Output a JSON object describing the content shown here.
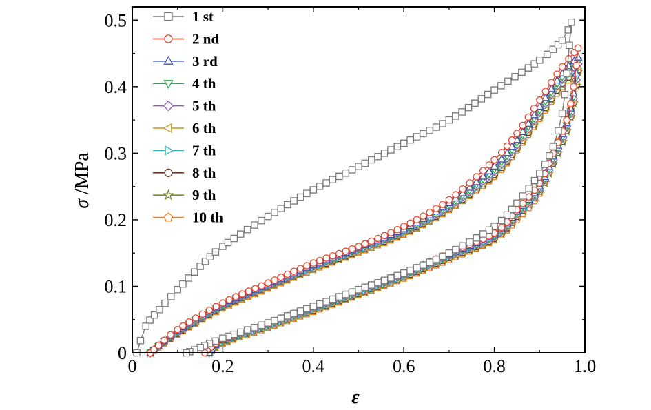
{
  "chart_data": {
    "type": "line",
    "title": "",
    "xlabel": "ε",
    "ylabel_symbol": "σ",
    "ylabel_unit": " /MPa",
    "xlim": [
      0,
      1.0
    ],
    "ylim": [
      0,
      0.52
    ],
    "xticks": [
      0,
      0.2,
      0.4,
      0.6,
      0.8,
      1.0
    ],
    "xtick_labels": [
      "0",
      "0.2",
      "0.4",
      "0.6",
      "0.8",
      "1.0"
    ],
    "yticks": [
      0,
      0.1,
      0.2,
      0.3,
      0.4,
      0.5
    ],
    "ytick_labels": [
      "0",
      "0.1",
      "0.2",
      "0.3",
      "0.4",
      "0.5"
    ],
    "grid": false,
    "legend_position": "top-left",
    "series": [
      {
        "name": "1 st",
        "marker": "square",
        "color": "#7a7a7a",
        "loading": [
          [
            0.01,
            0.0
          ],
          [
            0.03,
            0.04
          ],
          [
            0.06,
            0.065
          ],
          [
            0.1,
            0.095
          ],
          [
            0.15,
            0.13
          ],
          [
            0.2,
            0.16
          ],
          [
            0.3,
            0.205
          ],
          [
            0.4,
            0.245
          ],
          [
            0.5,
            0.28
          ],
          [
            0.6,
            0.315
          ],
          [
            0.7,
            0.35
          ],
          [
            0.8,
            0.395
          ],
          [
            0.9,
            0.44
          ],
          [
            0.95,
            0.47
          ],
          [
            0.97,
            0.497
          ]
        ],
        "unloading": [
          [
            0.97,
            0.497
          ],
          [
            0.96,
            0.42
          ],
          [
            0.95,
            0.36
          ],
          [
            0.93,
            0.31
          ],
          [
            0.9,
            0.27
          ],
          [
            0.85,
            0.225
          ],
          [
            0.8,
            0.19
          ],
          [
            0.7,
            0.15
          ],
          [
            0.6,
            0.12
          ],
          [
            0.5,
            0.095
          ],
          [
            0.4,
            0.07
          ],
          [
            0.3,
            0.045
          ],
          [
            0.2,
            0.022
          ],
          [
            0.15,
            0.008
          ],
          [
            0.12,
            0.0
          ]
        ]
      },
      {
        "name": "2 nd",
        "marker": "circle",
        "color": "#e8412a",
        "loading": [
          [
            0.04,
            0.0
          ],
          [
            0.1,
            0.035
          ],
          [
            0.2,
            0.075
          ],
          [
            0.3,
            0.105
          ],
          [
            0.4,
            0.135
          ],
          [
            0.5,
            0.16
          ],
          [
            0.6,
            0.19
          ],
          [
            0.7,
            0.23
          ],
          [
            0.8,
            0.29
          ],
          [
            0.85,
            0.33
          ],
          [
            0.9,
            0.38
          ],
          [
            0.95,
            0.43
          ],
          [
            0.985,
            0.458
          ]
        ],
        "unloading": [
          [
            0.985,
            0.458
          ],
          [
            0.975,
            0.4
          ],
          [
            0.96,
            0.35
          ],
          [
            0.93,
            0.3
          ],
          [
            0.9,
            0.255
          ],
          [
            0.85,
            0.215
          ],
          [
            0.8,
            0.18
          ],
          [
            0.7,
            0.15
          ],
          [
            0.6,
            0.12
          ],
          [
            0.5,
            0.095
          ],
          [
            0.4,
            0.07
          ],
          [
            0.3,
            0.045
          ],
          [
            0.2,
            0.02
          ],
          [
            0.16,
            0.0
          ]
        ]
      },
      {
        "name": "3 rd",
        "marker": "triangle-up",
        "color": "#3d4fa8",
        "loading": [
          [
            0.04,
            0.0
          ],
          [
            0.1,
            0.033
          ],
          [
            0.2,
            0.073
          ],
          [
            0.3,
            0.103
          ],
          [
            0.4,
            0.132
          ],
          [
            0.5,
            0.158
          ],
          [
            0.6,
            0.186
          ],
          [
            0.7,
            0.225
          ],
          [
            0.8,
            0.28
          ],
          [
            0.85,
            0.32
          ],
          [
            0.9,
            0.37
          ],
          [
            0.95,
            0.42
          ],
          [
            0.985,
            0.444
          ]
        ],
        "unloading": [
          [
            0.985,
            0.444
          ],
          [
            0.975,
            0.39
          ],
          [
            0.96,
            0.345
          ],
          [
            0.93,
            0.295
          ],
          [
            0.9,
            0.25
          ],
          [
            0.85,
            0.212
          ],
          [
            0.8,
            0.178
          ],
          [
            0.7,
            0.148
          ],
          [
            0.6,
            0.119
          ],
          [
            0.5,
            0.094
          ],
          [
            0.4,
            0.069
          ],
          [
            0.3,
            0.044
          ],
          [
            0.2,
            0.019
          ],
          [
            0.17,
            0.0
          ]
        ]
      },
      {
        "name": "4 th",
        "marker": "triangle-down",
        "color": "#2aa84a",
        "loading": [
          [
            0.04,
            0.0
          ],
          [
            0.1,
            0.032
          ],
          [
            0.2,
            0.072
          ],
          [
            0.3,
            0.102
          ],
          [
            0.4,
            0.131
          ],
          [
            0.5,
            0.157
          ],
          [
            0.6,
            0.184
          ],
          [
            0.7,
            0.222
          ],
          [
            0.8,
            0.276
          ],
          [
            0.85,
            0.316
          ],
          [
            0.9,
            0.365
          ],
          [
            0.95,
            0.415
          ],
          [
            0.985,
            0.438
          ]
        ],
        "unloading": [
          [
            0.985,
            0.438
          ],
          [
            0.975,
            0.385
          ],
          [
            0.96,
            0.342
          ],
          [
            0.93,
            0.292
          ],
          [
            0.9,
            0.248
          ],
          [
            0.85,
            0.21
          ],
          [
            0.8,
            0.176
          ],
          [
            0.7,
            0.147
          ],
          [
            0.6,
            0.118
          ],
          [
            0.5,
            0.093
          ],
          [
            0.4,
            0.068
          ],
          [
            0.3,
            0.043
          ],
          [
            0.2,
            0.018
          ],
          [
            0.17,
            0.0
          ]
        ]
      },
      {
        "name": "5 th",
        "marker": "diamond",
        "color": "#8e5bb5",
        "loading": [
          [
            0.04,
            0.0
          ],
          [
            0.1,
            0.031
          ],
          [
            0.2,
            0.071
          ],
          [
            0.3,
            0.101
          ],
          [
            0.4,
            0.13
          ],
          [
            0.5,
            0.156
          ],
          [
            0.6,
            0.183
          ],
          [
            0.7,
            0.22
          ],
          [
            0.8,
            0.273
          ],
          [
            0.85,
            0.313
          ],
          [
            0.9,
            0.362
          ],
          [
            0.95,
            0.412
          ],
          [
            0.985,
            0.434
          ]
        ],
        "unloading": [
          [
            0.985,
            0.434
          ],
          [
            0.975,
            0.382
          ],
          [
            0.96,
            0.34
          ],
          [
            0.93,
            0.29
          ],
          [
            0.9,
            0.246
          ],
          [
            0.85,
            0.208
          ],
          [
            0.8,
            0.175
          ],
          [
            0.7,
            0.146
          ],
          [
            0.6,
            0.117
          ],
          [
            0.5,
            0.092
          ],
          [
            0.4,
            0.067
          ],
          [
            0.3,
            0.042
          ],
          [
            0.2,
            0.018
          ],
          [
            0.17,
            0.0
          ]
        ]
      },
      {
        "name": "6 th",
        "marker": "triangle-left",
        "color": "#c8961e",
        "loading": [
          [
            0.04,
            0.0
          ],
          [
            0.1,
            0.03
          ],
          [
            0.2,
            0.07
          ],
          [
            0.3,
            0.1
          ],
          [
            0.4,
            0.129
          ],
          [
            0.5,
            0.155
          ],
          [
            0.6,
            0.182
          ],
          [
            0.7,
            0.219
          ],
          [
            0.8,
            0.271
          ],
          [
            0.85,
            0.311
          ],
          [
            0.9,
            0.36
          ],
          [
            0.95,
            0.41
          ],
          [
            0.985,
            0.43
          ]
        ],
        "unloading": [
          [
            0.985,
            0.43
          ],
          [
            0.975,
            0.38
          ],
          [
            0.96,
            0.338
          ],
          [
            0.93,
            0.288
          ],
          [
            0.9,
            0.245
          ],
          [
            0.85,
            0.207
          ],
          [
            0.8,
            0.174
          ],
          [
            0.7,
            0.145
          ],
          [
            0.6,
            0.116
          ],
          [
            0.5,
            0.091
          ],
          [
            0.4,
            0.066
          ],
          [
            0.3,
            0.041
          ],
          [
            0.2,
            0.017
          ],
          [
            0.17,
            0.0
          ]
        ]
      },
      {
        "name": "7 th",
        "marker": "triangle-right",
        "color": "#2bb3b3",
        "loading": [
          [
            0.04,
            0.0
          ],
          [
            0.1,
            0.03
          ],
          [
            0.2,
            0.07
          ],
          [
            0.3,
            0.1
          ],
          [
            0.4,
            0.128
          ],
          [
            0.5,
            0.154
          ],
          [
            0.6,
            0.181
          ],
          [
            0.7,
            0.218
          ],
          [
            0.8,
            0.27
          ],
          [
            0.85,
            0.31
          ],
          [
            0.9,
            0.358
          ],
          [
            0.95,
            0.408
          ],
          [
            0.985,
            0.428
          ]
        ],
        "unloading": [
          [
            0.985,
            0.428
          ],
          [
            0.975,
            0.378
          ],
          [
            0.96,
            0.336
          ],
          [
            0.93,
            0.286
          ],
          [
            0.9,
            0.244
          ],
          [
            0.85,
            0.206
          ],
          [
            0.8,
            0.173
          ],
          [
            0.7,
            0.144
          ],
          [
            0.6,
            0.115
          ],
          [
            0.5,
            0.09
          ],
          [
            0.4,
            0.065
          ],
          [
            0.3,
            0.04
          ],
          [
            0.2,
            0.016
          ],
          [
            0.17,
            0.0
          ]
        ]
      },
      {
        "name": "8 th",
        "marker": "circle",
        "color": "#6b3a2a",
        "loading": [
          [
            0.04,
            0.0
          ],
          [
            0.1,
            0.029
          ],
          [
            0.2,
            0.069
          ],
          [
            0.3,
            0.099
          ],
          [
            0.4,
            0.127
          ],
          [
            0.5,
            0.153
          ],
          [
            0.6,
            0.18
          ],
          [
            0.7,
            0.217
          ],
          [
            0.8,
            0.268
          ],
          [
            0.85,
            0.308
          ],
          [
            0.9,
            0.356
          ],
          [
            0.95,
            0.405
          ],
          [
            0.985,
            0.425
          ]
        ],
        "unloading": [
          [
            0.985,
            0.425
          ],
          [
            0.975,
            0.376
          ],
          [
            0.96,
            0.334
          ],
          [
            0.93,
            0.285
          ],
          [
            0.9,
            0.243
          ],
          [
            0.85,
            0.205
          ],
          [
            0.8,
            0.172
          ],
          [
            0.7,
            0.143
          ],
          [
            0.6,
            0.114
          ],
          [
            0.5,
            0.089
          ],
          [
            0.4,
            0.064
          ],
          [
            0.3,
            0.04
          ],
          [
            0.2,
            0.016
          ],
          [
            0.17,
            0.0
          ]
        ]
      },
      {
        "name": "9 th",
        "marker": "star",
        "color": "#7a8a1e",
        "loading": [
          [
            0.04,
            0.0
          ],
          [
            0.1,
            0.029
          ],
          [
            0.2,
            0.068
          ],
          [
            0.3,
            0.098
          ],
          [
            0.4,
            0.126
          ],
          [
            0.5,
            0.152
          ],
          [
            0.6,
            0.179
          ],
          [
            0.7,
            0.216
          ],
          [
            0.8,
            0.267
          ],
          [
            0.85,
            0.307
          ],
          [
            0.9,
            0.354
          ],
          [
            0.95,
            0.403
          ],
          [
            0.985,
            0.423
          ]
        ],
        "unloading": [
          [
            0.985,
            0.423
          ],
          [
            0.975,
            0.375
          ],
          [
            0.96,
            0.333
          ],
          [
            0.93,
            0.284
          ],
          [
            0.9,
            0.242
          ],
          [
            0.85,
            0.204
          ],
          [
            0.8,
            0.171
          ],
          [
            0.7,
            0.142
          ],
          [
            0.6,
            0.113
          ],
          [
            0.5,
            0.088
          ],
          [
            0.4,
            0.063
          ],
          [
            0.3,
            0.039
          ],
          [
            0.2,
            0.015
          ],
          [
            0.17,
            0.0
          ]
        ]
      },
      {
        "name": "10 th",
        "marker": "pentagon",
        "color": "#f07f1a",
        "loading": [
          [
            0.04,
            0.0
          ],
          [
            0.1,
            0.028
          ],
          [
            0.2,
            0.067
          ],
          [
            0.3,
            0.097
          ],
          [
            0.4,
            0.125
          ],
          [
            0.5,
            0.151
          ],
          [
            0.6,
            0.178
          ],
          [
            0.7,
            0.215
          ],
          [
            0.8,
            0.265
          ],
          [
            0.85,
            0.305
          ],
          [
            0.9,
            0.352
          ],
          [
            0.95,
            0.4
          ],
          [
            0.985,
            0.421
          ]
        ],
        "unloading": [
          [
            0.985,
            0.421
          ],
          [
            0.975,
            0.39
          ],
          [
            0.96,
            0.35
          ],
          [
            0.93,
            0.3
          ],
          [
            0.9,
            0.24
          ],
          [
            0.85,
            0.2
          ],
          [
            0.8,
            0.17
          ],
          [
            0.7,
            0.14
          ],
          [
            0.6,
            0.112
          ],
          [
            0.5,
            0.087
          ],
          [
            0.4,
            0.062
          ],
          [
            0.3,
            0.038
          ],
          [
            0.2,
            0.014
          ],
          [
            0.17,
            0.0
          ]
        ]
      }
    ]
  }
}
